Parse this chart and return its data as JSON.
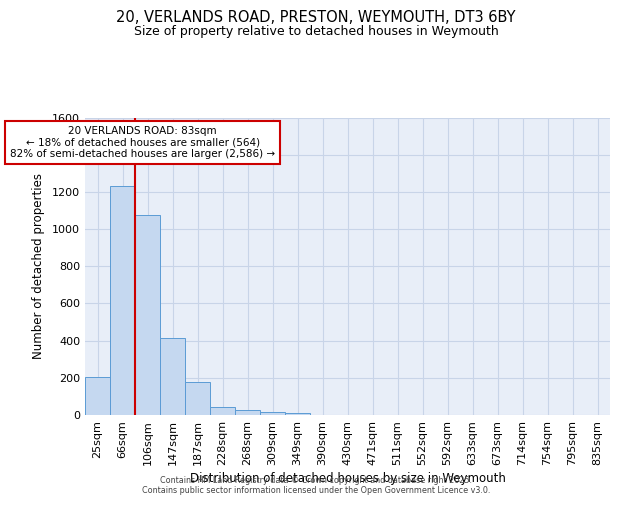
{
  "title_line1": "20, VERLANDS ROAD, PRESTON, WEYMOUTH, DT3 6BY",
  "title_line2": "Size of property relative to detached houses in Weymouth",
  "xlabel": "Distribution of detached houses by size in Weymouth",
  "ylabel": "Number of detached properties",
  "categories": [
    "25sqm",
    "66sqm",
    "106sqm",
    "147sqm",
    "187sqm",
    "228sqm",
    "268sqm",
    "309sqm",
    "349sqm",
    "390sqm",
    "430sqm",
    "471sqm",
    "511sqm",
    "552sqm",
    "592sqm",
    "633sqm",
    "673sqm",
    "714sqm",
    "754sqm",
    "795sqm",
    "835sqm"
  ],
  "values": [
    205,
    1230,
    1075,
    415,
    175,
    45,
    27,
    18,
    12,
    0,
    0,
    0,
    0,
    0,
    0,
    0,
    0,
    0,
    0,
    0,
    0
  ],
  "bar_color": "#c5d8f0",
  "bar_edge_color": "#5b9bd5",
  "grid_color": "#c8d4e8",
  "background_color": "#e8eef8",
  "vline_x": 1.5,
  "vline_color": "#cc0000",
  "annotation_text": "20 VERLANDS ROAD: 83sqm\n← 18% of detached houses are smaller (564)\n82% of semi-detached houses are larger (2,586) →",
  "annotation_box_color": "#cc0000",
  "ylim": [
    0,
    1600
  ],
  "yticks": [
    0,
    200,
    400,
    600,
    800,
    1000,
    1200,
    1400,
    1600
  ],
  "footer_line1": "Contains HM Land Registry data © Crown copyright and database right 2025.",
  "footer_line2": "Contains public sector information licensed under the Open Government Licence v3.0."
}
